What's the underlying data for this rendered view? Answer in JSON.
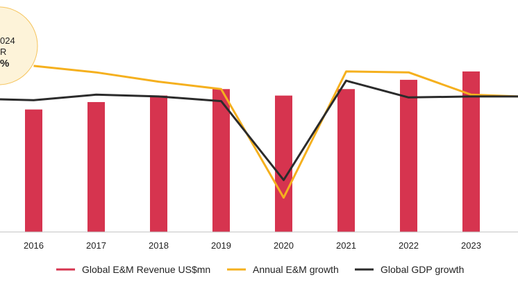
{
  "chart_data": {
    "type": "bar",
    "categories": [
      "2016",
      "2017",
      "2018",
      "2019",
      "2020",
      "2021",
      "2022",
      "2023"
    ],
    "bar_series": {
      "name": "Global E&M Revenue US$mn",
      "values": [
        66,
        70,
        73.5,
        77,
        73.5,
        77,
        82,
        86.5
      ],
      "color": "#d6344f"
    },
    "line_series": [
      {
        "name": "Annual E&M growth",
        "color": "#f5b01e",
        "values": [
          8.9,
          8.2,
          7.2,
          6.4,
          -5.3,
          8.3,
          8.2,
          5.8
        ],
        "edge_right": 5.6
      },
      {
        "name": "Global GDP growth",
        "color": "#2b2b2b",
        "values": [
          5.2,
          5.8,
          5.6,
          5.1,
          -3.4,
          7.3,
          5.5,
          5.6
        ],
        "edge_left": 5.3,
        "edge_right": 5.6
      }
    ],
    "bar_axis": {
      "min": 0,
      "max": 125
    },
    "line_axis": {
      "min": -9,
      "max": 16
    },
    "legend_position": "bottom-center",
    "grid": false,
    "badge": {
      "lines": [
        "024",
        "R",
        "%"
      ]
    }
  }
}
